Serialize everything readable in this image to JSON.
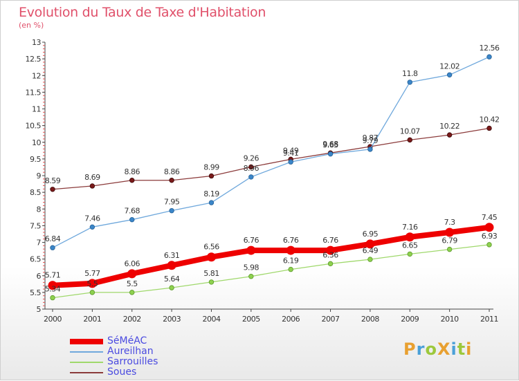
{
  "title": "Evolution du Taux de Taxe d'Habitation",
  "subtitle": "(en %)",
  "logo": "ProXiti",
  "chart_data": {
    "type": "line",
    "title": "Evolution du Taux de Taxe d'Habitation",
    "ylabel": "(en %)",
    "ylim": [
      5,
      13
    ],
    "yticks": [
      "5",
      "5.5",
      "6",
      "6.5",
      "7",
      "7.5",
      "8",
      "8.5",
      "9",
      "9.5",
      "10",
      "10.5",
      "11",
      "11.5",
      "12",
      "12.5",
      "13"
    ],
    "categories": [
      "2000",
      "2001",
      "2002",
      "2003",
      "2004",
      "2005",
      "2006",
      "2007",
      "2008",
      "2009",
      "2010",
      "2011"
    ],
    "legend_position": "bottom-left",
    "grid": false,
    "series": [
      {
        "name": "SéMéAC",
        "color": "#ee0000",
        "values": [
          5.71,
          5.77,
          6.06,
          6.31,
          6.56,
          6.76,
          6.76,
          6.76,
          6.95,
          7.16,
          7.3,
          7.45
        ],
        "labels": [
          "5.71",
          "5.77",
          "6.06",
          "6.31",
          "6.56",
          "6.76",
          "6.76",
          "6.76",
          "6.95",
          "7.16",
          "7.3",
          "7.45"
        ]
      },
      {
        "name": "Aureilhan",
        "color": "#6fa8dc",
        "values": [
          6.84,
          7.46,
          7.68,
          7.95,
          8.19,
          8.96,
          9.41,
          9.65,
          9.79,
          11.8,
          12.02,
          12.56
        ],
        "labels": [
          "6.84",
          "7.46",
          "7.68",
          "7.95",
          "8.19",
          "8.96",
          "9.41",
          "9.65",
          "9.79",
          "11.8",
          "12.02",
          "12.56"
        ]
      },
      {
        "name": "Sarrouilles",
        "color": "#9fd86b",
        "values": [
          5.34,
          5.5,
          5.5,
          5.64,
          5.81,
          5.98,
          6.19,
          6.36,
          6.49,
          6.65,
          6.79,
          6.93
        ],
        "labels": [
          "5.34",
          "5.5",
          "5.5",
          "5.64",
          "5.81",
          "5.98",
          "6.19",
          "6.36",
          "6.49",
          "6.65",
          "6.79",
          "6.93"
        ]
      },
      {
        "name": "Soues",
        "color": "#8b3a3a",
        "values": [
          8.59,
          8.69,
          8.86,
          8.86,
          8.99,
          9.26,
          9.49,
          9.68,
          9.87,
          10.07,
          10.22,
          10.42
        ],
        "labels": [
          "8.59",
          "8.69",
          "8.86",
          "8.86",
          "8.99",
          "9.26",
          "9.49",
          "9.68",
          "9.87",
          "10.07",
          "10.22",
          "10.42"
        ]
      }
    ]
  }
}
